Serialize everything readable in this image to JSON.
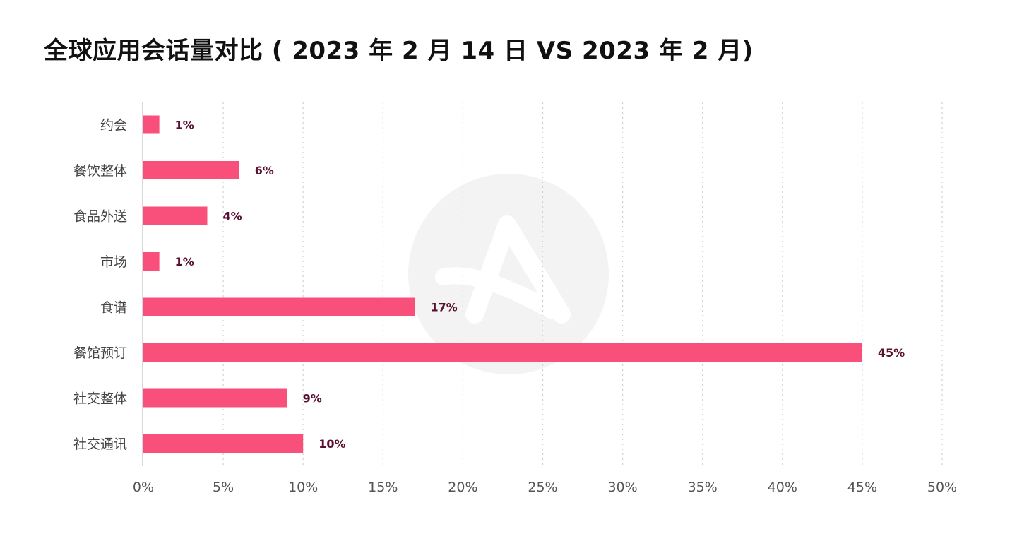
{
  "title": "全球应用会话量对比 ( 2023 年 2 月 14 日 VS 2023 年 2 月)",
  "chart_data": {
    "type": "bar",
    "orientation": "horizontal",
    "categories": [
      "约会",
      "餐饮整体",
      "食品外送",
      "市场",
      "食谱",
      "餐馆预订",
      "社交整体",
      "社交通讯"
    ],
    "values": [
      1,
      6,
      4,
      1,
      17,
      45,
      9,
      10
    ],
    "data_labels": [
      "1%",
      "6%",
      "4%",
      "1%",
      "17%",
      "45%",
      "9%",
      "10%"
    ],
    "xlim": [
      0,
      50
    ],
    "x_ticks": [
      0,
      5,
      10,
      15,
      20,
      25,
      30,
      35,
      40,
      45,
      50
    ],
    "x_tick_labels": [
      "0%",
      "5%",
      "10%",
      "15%",
      "20%",
      "25%",
      "30%",
      "35%",
      "40%",
      "45%",
      "50%"
    ],
    "grid": "vertical dotted",
    "bar_color": "#f8507a",
    "label_color": "#5a0f2e"
  }
}
